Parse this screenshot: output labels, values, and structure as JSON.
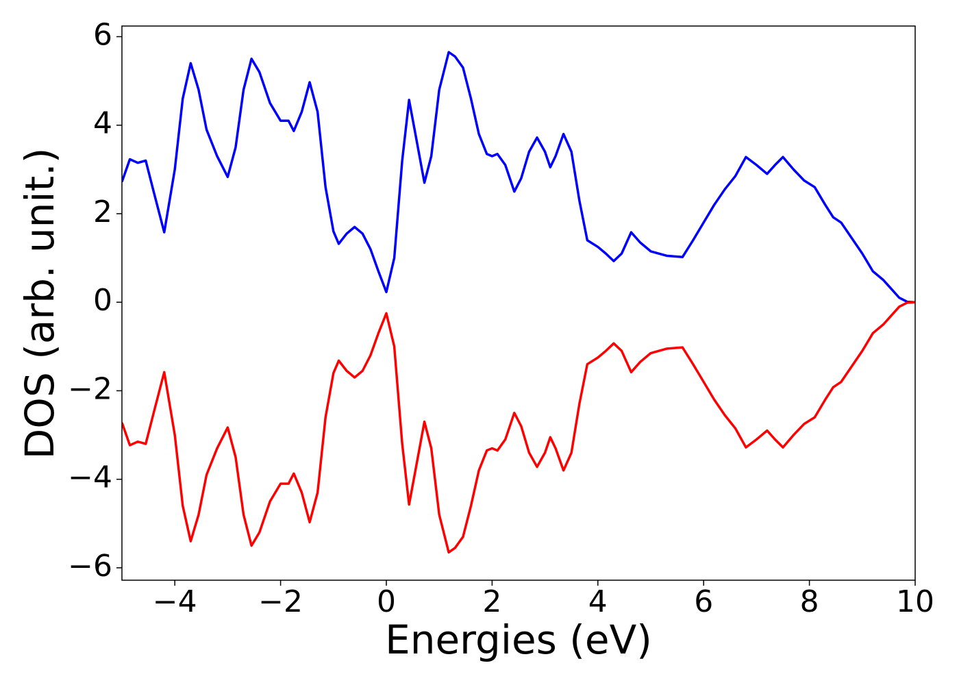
{
  "chart_data": {
    "type": "line",
    "x_label": "Energies (eV)",
    "y_label": "DOS (arb. unit.)",
    "x": [
      -5,
      -4.85,
      -4.7,
      -4.55,
      -4.4,
      -4.2,
      -4.0,
      -3.85,
      -3.7,
      -3.55,
      -3.4,
      -3.2,
      -3.0,
      -2.85,
      -2.7,
      -2.55,
      -2.4,
      -2.2,
      -2.0,
      -1.85,
      -1.75,
      -1.6,
      -1.45,
      -1.3,
      -1.15,
      -1.0,
      -0.9,
      -0.75,
      -0.6,
      -0.45,
      -0.3,
      -0.15,
      0,
      0.15,
      0.3,
      0.43,
      0.55,
      0.72,
      0.85,
      1.0,
      1.18,
      1.3,
      1.45,
      1.6,
      1.75,
      1.9,
      2.0,
      2.1,
      2.25,
      2.42,
      2.55,
      2.7,
      2.85,
      3.0,
      3.1,
      3.2,
      3.35,
      3.5,
      3.65,
      3.8,
      4.0,
      4.15,
      4.3,
      4.45,
      4.63,
      4.8,
      5.0,
      5.3,
      5.6,
      5.8,
      6.0,
      6.2,
      6.4,
      6.6,
      6.8,
      7.0,
      7.2,
      7.35,
      7.5,
      7.7,
      7.9,
      8.1,
      8.3,
      8.45,
      8.6,
      8.8,
      9.0,
      9.2,
      9.4,
      9.55,
      9.7,
      9.85,
      10
    ],
    "series": [
      {
        "color": "#0000ff",
        "values": [
          2.72,
          3.23,
          3.15,
          3.2,
          2.5,
          1.58,
          3.0,
          4.6,
          5.4,
          4.8,
          3.9,
          3.3,
          2.83,
          3.5,
          4.8,
          5.5,
          5.2,
          4.5,
          4.1,
          4.1,
          3.87,
          4.3,
          4.97,
          4.3,
          2.6,
          1.6,
          1.32,
          1.55,
          1.7,
          1.55,
          1.2,
          0.7,
          0.23,
          1.0,
          3.2,
          4.57,
          3.8,
          2.7,
          3.3,
          4.8,
          5.65,
          5.55,
          5.3,
          4.6,
          3.8,
          3.35,
          3.3,
          3.35,
          3.1,
          2.5,
          2.8,
          3.4,
          3.72,
          3.4,
          3.05,
          3.3,
          3.8,
          3.4,
          2.3,
          1.4,
          1.25,
          1.1,
          0.93,
          1.1,
          1.58,
          1.35,
          1.15,
          1.05,
          1.02,
          1.4,
          1.8,
          2.2,
          2.55,
          2.85,
          3.28,
          3.1,
          2.9,
          3.1,
          3.28,
          3.0,
          2.75,
          2.6,
          2.2,
          1.92,
          1.8,
          1.45,
          1.1,
          0.7,
          0.5,
          0.3,
          0.1,
          0.01,
          0
        ]
      },
      {
        "color": "#ff0000",
        "values": [
          -2.72,
          -3.23,
          -3.15,
          -3.2,
          -2.5,
          -1.58,
          -3.0,
          -4.6,
          -5.4,
          -4.8,
          -3.9,
          -3.3,
          -2.83,
          -3.5,
          -4.8,
          -5.5,
          -5.2,
          -4.5,
          -4.1,
          -4.1,
          -3.87,
          -4.3,
          -4.97,
          -4.3,
          -2.6,
          -1.6,
          -1.32,
          -1.55,
          -1.7,
          -1.55,
          -1.2,
          -0.7,
          -0.25,
          -1.0,
          -3.2,
          -4.57,
          -3.8,
          -2.7,
          -3.3,
          -4.8,
          -5.65,
          -5.55,
          -5.3,
          -4.6,
          -3.8,
          -3.35,
          -3.3,
          -3.35,
          -3.1,
          -2.5,
          -2.8,
          -3.4,
          -3.72,
          -3.4,
          -3.05,
          -3.3,
          -3.8,
          -3.4,
          -2.3,
          -1.4,
          -1.25,
          -1.1,
          -0.93,
          -1.1,
          -1.58,
          -1.35,
          -1.15,
          -1.05,
          -1.02,
          -1.4,
          -1.8,
          -2.2,
          -2.55,
          -2.85,
          -3.28,
          -3.1,
          -2.9,
          -3.1,
          -3.28,
          -3.0,
          -2.75,
          -2.6,
          -2.2,
          -1.92,
          -1.8,
          -1.45,
          -1.1,
          -0.7,
          -0.5,
          -0.3,
          -0.1,
          -0.01,
          0
        ]
      }
    ],
    "xlim": [
      -5,
      10
    ],
    "xticks": [
      {
        "value": -4,
        "label": "−4"
      },
      {
        "value": -2,
        "label": "−2"
      },
      0,
      2,
      4,
      6,
      8,
      10
    ],
    "ylim": [
      -6.28,
      6.24
    ],
    "yticks": [
      {
        "value": -6,
        "label": "−6"
      },
      {
        "value": -4,
        "label": "−4"
      },
      {
        "value": -2,
        "label": "−2"
      },
      0,
      2,
      4,
      6
    ],
    "grid": false
  }
}
